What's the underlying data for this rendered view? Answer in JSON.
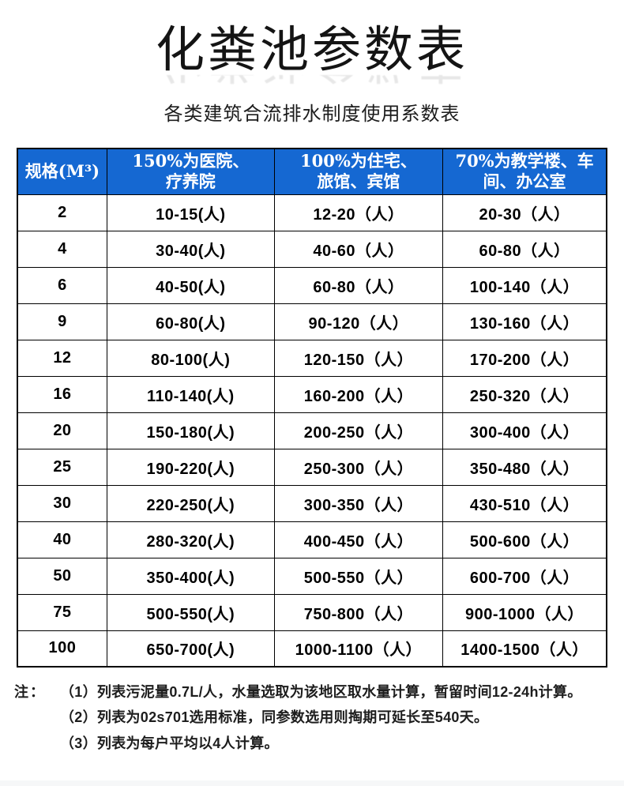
{
  "page": {
    "title": "化粪池参数表",
    "subtitle": "各类建筑合流排水制度使用系数表"
  },
  "colors": {
    "header_bg": "#1568d2",
    "header_text": "#ffffff",
    "border": "#000000"
  },
  "table": {
    "columns": [
      "规格(M³)",
      "150%为医院、\n疗养院",
      "100%为住宅、\n旅馆、宾馆",
      "70%为教学楼、车\n间、办公室"
    ],
    "rows": [
      [
        "2",
        "10-15(人)",
        "12-20（人）",
        "20-30（人）"
      ],
      [
        "4",
        "30-40(人)",
        "40-60（人）",
        "60-80（人）"
      ],
      [
        "6",
        "40-50(人)",
        "60-80（人）",
        "100-140（人）"
      ],
      [
        "9",
        "60-80(人)",
        "90-120（人）",
        "130-160（人）"
      ],
      [
        "12",
        "80-100(人)",
        "120-150（人）",
        "170-200（人）"
      ],
      [
        "16",
        "110-140(人)",
        "160-200（人）",
        "250-320（人）"
      ],
      [
        "20",
        "150-180(人)",
        "200-250（人）",
        "300-400（人）"
      ],
      [
        "25",
        "190-220(人)",
        "250-300（人）",
        "350-480（人）"
      ],
      [
        "30",
        "220-250(人)",
        "300-350（人）",
        "430-510（人）"
      ],
      [
        "40",
        "280-320(人)",
        "400-450（人）",
        "500-600（人）"
      ],
      [
        "50",
        "350-400(人)",
        "500-550（人）",
        "600-700（人）"
      ],
      [
        "75",
        "500-550(人)",
        "750-800（人）",
        "900-1000（人）"
      ],
      [
        "100",
        "650-700(人)",
        "1000-1100（人）",
        "1400-1500（人）"
      ]
    ]
  },
  "notes": {
    "label": "注：",
    "items": [
      "（1）列表污泥量0.7L/人，水量选取为该地区取水量计算，暂留时间12-24h计算。",
      "（2）列表为02s701选用标准，同参数选用则掏期可延长至540天。",
      "（3）列表为每户平均以4人计算。"
    ]
  }
}
